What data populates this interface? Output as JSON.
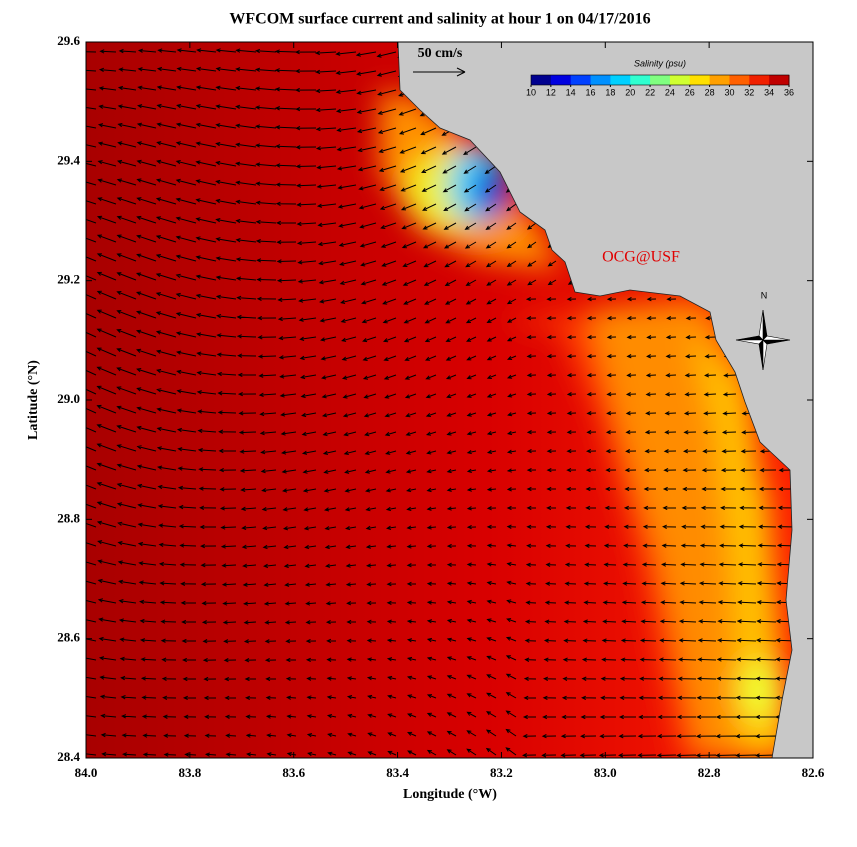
{
  "title": "WFCOM surface current and salinity at hour 1 on 04/17/2016",
  "xaxis": {
    "label": "Longitude (°W)",
    "lim": [
      84.0,
      82.6
    ],
    "ticks": [
      {
        "value": 84.0,
        "label": "84.0"
      },
      {
        "value": 83.8,
        "label": "83.8"
      },
      {
        "value": 83.6,
        "label": "83.6"
      },
      {
        "value": 83.4,
        "label": "83.4"
      },
      {
        "value": 83.2,
        "label": "83.2"
      },
      {
        "value": 83.0,
        "label": "83.0"
      },
      {
        "value": 82.8,
        "label": "82.8"
      },
      {
        "value": 82.6,
        "label": "82.6"
      }
    ]
  },
  "yaxis": {
    "label": "Latitude (°N)",
    "lim": [
      28.4,
      29.6
    ],
    "ticks": [
      {
        "value": 28.4,
        "label": "28.4"
      },
      {
        "value": 28.6,
        "label": "28.6"
      },
      {
        "value": 28.8,
        "label": "28.8"
      },
      {
        "value": 29.0,
        "label": "29.0"
      },
      {
        "value": 29.2,
        "label": "29.2"
      },
      {
        "value": 29.4,
        "label": "29.4"
      },
      {
        "value": 29.6,
        "label": "29.6"
      }
    ]
  },
  "colorbar": {
    "label": "Salinity (psu)",
    "lim": [
      10,
      36
    ],
    "ticks": [
      10,
      12,
      14,
      16,
      18,
      20,
      22,
      24,
      26,
      28,
      30,
      32,
      34,
      36
    ],
    "colors": [
      "#00008f",
      "#0000e0",
      "#0040ff",
      "#0090ff",
      "#00d0ff",
      "#30ffd0",
      "#80ff80",
      "#d0ff30",
      "#ffe000",
      "#ffa000",
      "#ff6000",
      "#f02000",
      "#c00000"
    ]
  },
  "scale_label": "50 cm/s",
  "credit": "OCG@USF",
  "compass_label": "N"
}
